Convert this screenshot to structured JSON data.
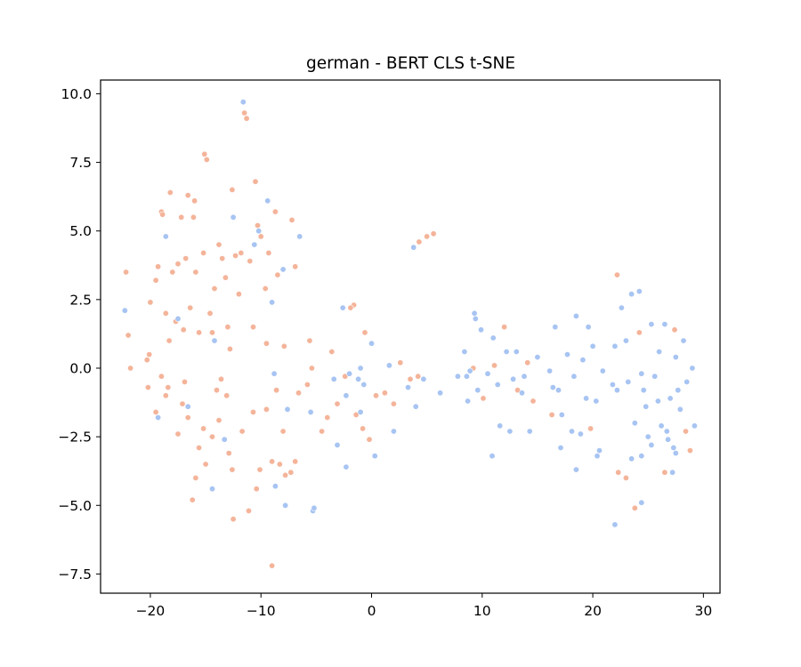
{
  "chart_data": {
    "type": "scatter",
    "title": "german - BERT CLS t-SNE",
    "xlabel": "",
    "ylabel": "",
    "xlim": [
      -24.5,
      31.5
    ],
    "ylim": [
      -8.2,
      10.5
    ],
    "x_ticks": [
      -20,
      -10,
      0,
      10,
      20,
      30
    ],
    "x_tick_labels": [
      "−20",
      "−10",
      "0",
      "10",
      "20",
      "30"
    ],
    "y_ticks": [
      -7.5,
      -5.0,
      -2.5,
      0.0,
      2.5,
      5.0,
      7.5,
      10.0
    ],
    "y_tick_labels": [
      "−7.5",
      "−5.0",
      "−2.5",
      "0.0",
      "2.5",
      "5.0",
      "7.5",
      "10.0"
    ],
    "grid": false,
    "legend": "none",
    "series": [
      {
        "color": "#f4b49a",
        "points": [
          [
            -22.2,
            3.5
          ],
          [
            -22.0,
            1.2
          ],
          [
            -21.8,
            0.0
          ],
          [
            -20.0,
            2.4
          ],
          [
            -20.3,
            0.3
          ],
          [
            -20.1,
            0.5
          ],
          [
            -19.5,
            3.2
          ],
          [
            -19.3,
            3.7
          ],
          [
            -19.0,
            5.7
          ],
          [
            -18.9,
            5.6
          ],
          [
            -18.6,
            2.0
          ],
          [
            -18.3,
            1.0
          ],
          [
            -18.2,
            6.4
          ],
          [
            -18.0,
            3.5
          ],
          [
            -17.7,
            1.7
          ],
          [
            -17.5,
            3.8
          ],
          [
            -17.2,
            5.5
          ],
          [
            -17.0,
            1.4
          ],
          [
            -16.8,
            4.0
          ],
          [
            -16.6,
            6.3
          ],
          [
            -16.4,
            2.2
          ],
          [
            -16.1,
            5.5
          ],
          [
            -16.0,
            6.1
          ],
          [
            -15.9,
            3.5
          ],
          [
            -15.6,
            1.3
          ],
          [
            -15.2,
            4.2
          ],
          [
            -15.1,
            7.8
          ],
          [
            -14.9,
            7.6
          ],
          [
            -14.6,
            2.0
          ],
          [
            -14.4,
            1.3
          ],
          [
            -14.2,
            2.9
          ],
          [
            -13.8,
            4.5
          ],
          [
            -13.5,
            4.0
          ],
          [
            -13.2,
            3.3
          ],
          [
            -13.0,
            1.5
          ],
          [
            -12.8,
            0.7
          ],
          [
            -12.6,
            6.5
          ],
          [
            -12.3,
            4.1
          ],
          [
            -12.0,
            2.7
          ],
          [
            -11.8,
            4.2
          ],
          [
            -11.5,
            9.3
          ],
          [
            -11.3,
            9.1
          ],
          [
            -11.0,
            3.9
          ],
          [
            -10.7,
            1.5
          ],
          [
            -10.5,
            6.8
          ],
          [
            -10.3,
            5.2
          ],
          [
            -10.0,
            4.8
          ],
          [
            -9.6,
            2.9
          ],
          [
            -9.3,
            4.2
          ],
          [
            -8.7,
            5.7
          ],
          [
            -8.5,
            3.4
          ],
          [
            -7.9,
            0.8
          ],
          [
            -7.2,
            5.4
          ],
          [
            -6.9,
            3.7
          ],
          [
            -20.2,
            -0.7
          ],
          [
            -19.5,
            -1.6
          ],
          [
            -19.0,
            -0.3
          ],
          [
            -18.6,
            -1.0
          ],
          [
            -17.5,
            -2.4
          ],
          [
            -17.1,
            -1.3
          ],
          [
            -16.6,
            -1.8
          ],
          [
            -16.2,
            -4.8
          ],
          [
            -15.9,
            -4.0
          ],
          [
            -15.6,
            -2.9
          ],
          [
            -15.2,
            -2.2
          ],
          [
            -15.0,
            -3.5
          ],
          [
            -14.4,
            -2.5
          ],
          [
            -14.0,
            -0.8
          ],
          [
            -13.6,
            -0.4
          ],
          [
            -13.1,
            -1.0
          ],
          [
            -12.9,
            -3.1
          ],
          [
            -12.6,
            -3.7
          ],
          [
            -12.5,
            -5.5
          ],
          [
            -11.7,
            -2.3
          ],
          [
            -11.1,
            -5.2
          ],
          [
            -10.7,
            -1.6
          ],
          [
            -10.4,
            -4.4
          ],
          [
            -10.1,
            -3.7
          ],
          [
            -9.5,
            -1.5
          ],
          [
            -9.0,
            -3.4
          ],
          [
            -8.6,
            -0.8
          ],
          [
            -8.3,
            -3.5
          ],
          [
            -8.0,
            -2.3
          ],
          [
            -7.8,
            -3.9
          ],
          [
            -7.3,
            -3.8
          ],
          [
            -6.9,
            -3.4
          ],
          [
            -6.6,
            -0.9
          ],
          [
            -5.8,
            -0.6
          ],
          [
            -5.4,
            0.0
          ],
          [
            -4.5,
            -2.3
          ],
          [
            -3.6,
            0.6
          ],
          [
            -3.1,
            -1.3
          ],
          [
            -2.4,
            -0.3
          ],
          [
            -1.6,
            2.3
          ],
          [
            -1.4,
            -1.7
          ],
          [
            -0.8,
            -2.2
          ],
          [
            -0.2,
            -2.6
          ],
          [
            0.4,
            -1.0
          ],
          [
            1.2,
            -0.9
          ],
          [
            2.0,
            -1.3
          ],
          [
            2.6,
            0.2
          ],
          [
            3.5,
            -0.4
          ],
          [
            4.2,
            -0.3
          ],
          [
            4.3,
            4.6
          ],
          [
            5.0,
            4.8
          ],
          [
            5.6,
            4.9
          ],
          [
            -5.6,
            1.0
          ],
          [
            -4.0,
            -1.8
          ],
          [
            -1.9,
            2.2
          ],
          [
            -0.6,
            1.3
          ],
          [
            -9.0,
            -7.2
          ],
          [
            -9.5,
            0.9
          ],
          [
            -13.8,
            -1.9
          ],
          [
            -16.9,
            -0.5
          ],
          [
            -18.4,
            -0.7
          ],
          [
            9.2,
            0.0
          ],
          [
            10.1,
            -1.1
          ],
          [
            11.1,
            0.1
          ],
          [
            12.0,
            1.5
          ],
          [
            13.2,
            -0.8
          ],
          [
            14.1,
            0.2
          ],
          [
            14.6,
            -1.2
          ],
          [
            16.3,
            -1.7
          ],
          [
            19.8,
            -2.2
          ],
          [
            22.2,
            3.4
          ],
          [
            22.3,
            -3.8
          ],
          [
            23.0,
            -4.0
          ],
          [
            23.8,
            -5.1
          ],
          [
            24.2,
            1.3
          ],
          [
            26.5,
            -3.8
          ],
          [
            27.4,
            1.4
          ],
          [
            28.4,
            -2.3
          ],
          [
            28.8,
            -3.0
          ]
        ]
      },
      {
        "color": "#a7c4f2",
        "points": [
          [
            -22.3,
            2.1
          ],
          [
            -19.3,
            -1.8
          ],
          [
            -18.6,
            4.8
          ],
          [
            -17.5,
            1.8
          ],
          [
            -16.6,
            -1.4
          ],
          [
            -14.2,
            1.0
          ],
          [
            -14.4,
            -4.4
          ],
          [
            -13.3,
            -2.6
          ],
          [
            -12.5,
            5.5
          ],
          [
            -11.6,
            9.7
          ],
          [
            -10.6,
            4.5
          ],
          [
            -10.2,
            5.0
          ],
          [
            -9.4,
            6.1
          ],
          [
            -9.0,
            2.4
          ],
          [
            -8.8,
            -0.2
          ],
          [
            -8.7,
            -4.3
          ],
          [
            -8.0,
            3.6
          ],
          [
            -7.8,
            -5.0
          ],
          [
            -7.6,
            -1.5
          ],
          [
            -6.5,
            4.8
          ],
          [
            -5.5,
            -1.6
          ],
          [
            -5.3,
            -5.2
          ],
          [
            -5.2,
            -5.1
          ],
          [
            -3.1,
            -2.8
          ],
          [
            -2.6,
            2.2
          ],
          [
            -2.3,
            -1.0
          ],
          [
            -2.0,
            -0.2
          ],
          [
            -1.2,
            -0.4
          ],
          [
            -1.0,
            -1.6
          ],
          [
            -0.7,
            -0.6
          ],
          [
            0.0,
            0.9
          ],
          [
            0.3,
            -3.2
          ],
          [
            1.6,
            0.1
          ],
          [
            2.0,
            -2.3
          ],
          [
            3.3,
            -0.7
          ],
          [
            3.8,
            4.4
          ],
          [
            4.0,
            -1.4
          ],
          [
            4.7,
            -0.4
          ],
          [
            6.2,
            -0.9
          ],
          [
            7.8,
            -0.3
          ],
          [
            8.4,
            0.6
          ],
          [
            8.6,
            -0.3
          ],
          [
            8.9,
            -0.1
          ],
          [
            9.3,
            2.0
          ],
          [
            9.6,
            -0.8
          ],
          [
            9.9,
            1.4
          ],
          [
            10.5,
            -0.2
          ],
          [
            11.0,
            1.1
          ],
          [
            11.4,
            -0.6
          ],
          [
            12.2,
            0.6
          ],
          [
            12.8,
            -0.4
          ],
          [
            13.1,
            0.6
          ],
          [
            13.6,
            -0.9
          ],
          [
            14.3,
            -2.3
          ],
          [
            15.0,
            0.4
          ],
          [
            16.1,
            -0.1
          ],
          [
            16.4,
            -0.7
          ],
          [
            16.6,
            1.5
          ],
          [
            16.9,
            -0.8
          ],
          [
            17.2,
            -1.7
          ],
          [
            17.7,
            0.5
          ],
          [
            18.3,
            -0.3
          ],
          [
            18.5,
            1.9
          ],
          [
            18.9,
            -2.4
          ],
          [
            19.1,
            0.3
          ],
          [
            19.4,
            -1.1
          ],
          [
            19.6,
            1.5
          ],
          [
            20.0,
            0.8
          ],
          [
            20.3,
            -1.2
          ],
          [
            20.6,
            -3.0
          ],
          [
            20.9,
            -0.1
          ],
          [
            21.8,
            -0.6
          ],
          [
            22.0,
            0.8
          ],
          [
            22.2,
            -0.8
          ],
          [
            22.6,
            2.2
          ],
          [
            23.0,
            1.0
          ],
          [
            23.2,
            -0.5
          ],
          [
            23.5,
            2.7
          ],
          [
            23.8,
            -2.0
          ],
          [
            24.4,
            -0.2
          ],
          [
            24.6,
            -0.8
          ],
          [
            24.8,
            -1.4
          ],
          [
            25.0,
            -2.5
          ],
          [
            25.3,
            1.6
          ],
          [
            25.6,
            -0.3
          ],
          [
            25.9,
            -1.2
          ],
          [
            26.0,
            0.6
          ],
          [
            26.2,
            -2.1
          ],
          [
            26.5,
            1.6
          ],
          [
            26.7,
            -2.3
          ],
          [
            27.0,
            -1.1
          ],
          [
            27.3,
            -2.9
          ],
          [
            27.5,
            0.4
          ],
          [
            27.7,
            -0.8
          ],
          [
            27.9,
            -1.5
          ],
          [
            28.2,
            1.0
          ],
          [
            28.5,
            -0.5
          ],
          [
            29.0,
            0.0
          ],
          [
            29.2,
            -2.1
          ],
          [
            24.2,
            2.8
          ],
          [
            22.0,
            -5.7
          ],
          [
            24.4,
            -4.9
          ],
          [
            17.1,
            -2.9
          ],
          [
            18.1,
            -2.3
          ],
          [
            18.5,
            -3.7
          ],
          [
            20.4,
            -3.2
          ],
          [
            23.5,
            -3.3
          ],
          [
            24.4,
            -3.2
          ],
          [
            25.3,
            -2.8
          ],
          [
            26.8,
            -2.6
          ],
          [
            27.5,
            -3.1
          ],
          [
            27.2,
            -3.8
          ],
          [
            9.4,
            1.8
          ],
          [
            11.6,
            -2.1
          ],
          [
            8.7,
            -1.2
          ],
          [
            13.8,
            -0.3
          ],
          [
            12.5,
            -2.3
          ],
          [
            10.9,
            -3.2
          ],
          [
            -1.0,
            0.0
          ],
          [
            -2.3,
            -3.6
          ],
          [
            -3.4,
            -0.4
          ]
        ]
      }
    ]
  }
}
